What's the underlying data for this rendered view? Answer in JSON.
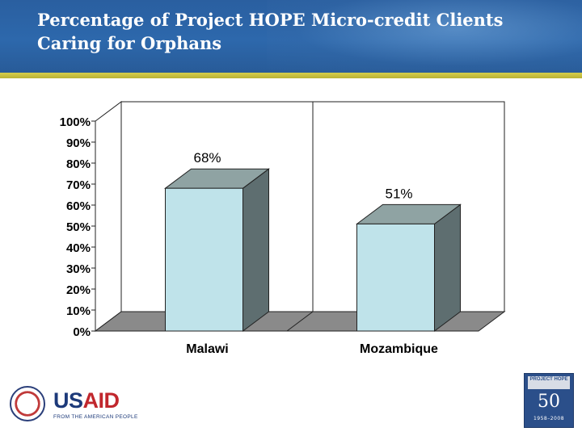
{
  "slide": {
    "title": "Percentage of Project HOPE Micro-credit Clients Caring for Orphans"
  },
  "chart_data": {
    "type": "bar",
    "categories": [
      "Malawi",
      "Mozambique"
    ],
    "values": [
      68,
      51
    ],
    "data_labels": [
      "68%",
      "51%"
    ],
    "y_ticks": [
      "0%",
      "10%",
      "20%",
      "30%",
      "40%",
      "50%",
      "60%",
      "70%",
      "80%",
      "90%",
      "100%"
    ],
    "ylim": [
      0,
      100
    ],
    "legend": "none",
    "grid": false,
    "bar_colors": {
      "front": "#bfe3ea",
      "side": "#5e6e70",
      "top": "#8fa3a3",
      "floor": "#8a8a8a",
      "wall": "#ffffff"
    }
  },
  "footer": {
    "usaid_logo_text_us": "US",
    "usaid_logo_text_aid": "AID",
    "usaid_tagline": "FROM THE AMERICAN PEOPLE",
    "hope_logo_name": "PROJECT HOPE",
    "hope_logo_number": "50",
    "hope_logo_years": "1958–2008"
  }
}
